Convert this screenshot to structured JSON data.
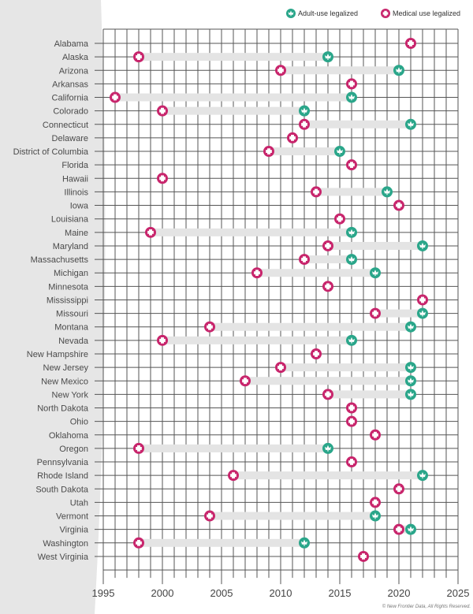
{
  "chart_data": {
    "type": "dumbbell",
    "xlim": [
      1995,
      2025
    ],
    "x_ticks": [
      1995,
      2000,
      2005,
      2010,
      2015,
      2020,
      2025
    ],
    "grid": true,
    "legend_placement": "top-right",
    "series": [
      {
        "name": "Adult-use legalized",
        "color": "#2aa68a",
        "icon": "cannabis-leaf-icon"
      },
      {
        "name": "Medical use legalized",
        "color": "#c8256c",
        "icon": "medical-cross-icon"
      }
    ],
    "bar_color": "#e4e4e4",
    "rows": [
      {
        "state": "Alabama",
        "medical": 2021,
        "adult": null
      },
      {
        "state": "Alaska",
        "medical": 1998,
        "adult": 2014
      },
      {
        "state": "Arizona",
        "medical": 2010,
        "adult": 2020
      },
      {
        "state": "Arkansas",
        "medical": 2016,
        "adult": null
      },
      {
        "state": "California",
        "medical": 1996,
        "adult": 2016
      },
      {
        "state": "Colorado",
        "medical": 2000,
        "adult": 2012
      },
      {
        "state": "Connecticut",
        "medical": 2012,
        "adult": 2021
      },
      {
        "state": "Delaware",
        "medical": 2011,
        "adult": null
      },
      {
        "state": "District of Columbia",
        "medical": 2009,
        "adult": 2015
      },
      {
        "state": "Florida",
        "medical": 2016,
        "adult": null
      },
      {
        "state": "Hawaii",
        "medical": 2000,
        "adult": null
      },
      {
        "state": "Illinois",
        "medical": 2013,
        "adult": 2019
      },
      {
        "state": "Iowa",
        "medical": 2020,
        "adult": null
      },
      {
        "state": "Louisiana",
        "medical": 2015,
        "adult": null
      },
      {
        "state": "Maine",
        "medical": 1999,
        "adult": 2016
      },
      {
        "state": "Maryland",
        "medical": 2014,
        "adult": 2022
      },
      {
        "state": "Massachusetts",
        "medical": 2012,
        "adult": 2016
      },
      {
        "state": "Michigan",
        "medical": 2008,
        "adult": 2018
      },
      {
        "state": "Minnesota",
        "medical": 2014,
        "adult": null
      },
      {
        "state": "Mississippi",
        "medical": 2022,
        "adult": null
      },
      {
        "state": "Missouri",
        "medical": 2018,
        "adult": 2022
      },
      {
        "state": "Montana",
        "medical": 2004,
        "adult": 2021
      },
      {
        "state": "Nevada",
        "medical": 2000,
        "adult": 2016
      },
      {
        "state": "New Hampshire",
        "medical": 2013,
        "adult": null
      },
      {
        "state": "New Jersey",
        "medical": 2010,
        "adult": 2021
      },
      {
        "state": "New Mexico",
        "medical": 2007,
        "adult": 2021
      },
      {
        "state": "New York",
        "medical": 2014,
        "adult": 2021
      },
      {
        "state": "North Dakota",
        "medical": 2016,
        "adult": null
      },
      {
        "state": "Ohio",
        "medical": 2016,
        "adult": null
      },
      {
        "state": "Oklahoma",
        "medical": 2018,
        "adult": null
      },
      {
        "state": "Oregon",
        "medical": 1998,
        "adult": 2014
      },
      {
        "state": "Pennsylvania",
        "medical": 2016,
        "adult": null
      },
      {
        "state": "Rhode Island",
        "medical": 2006,
        "adult": 2022
      },
      {
        "state": "South Dakota",
        "medical": 2020,
        "adult": null
      },
      {
        "state": "Utah",
        "medical": 2018,
        "adult": null
      },
      {
        "state": "Vermont",
        "medical": 2004,
        "adult": 2018
      },
      {
        "state": "Virginia",
        "medical": 2020,
        "adult": 2021
      },
      {
        "state": "Washington",
        "medical": 1998,
        "adult": 2012
      },
      {
        "state": "West Virginia",
        "medical": 2017,
        "adult": null
      }
    ]
  },
  "legend": {
    "adult_label": "Adult-use legalized",
    "medical_label": "Medical use legalized"
  },
  "footer": {
    "copyright": "© New Frontier Data, All Rights Reserved."
  }
}
